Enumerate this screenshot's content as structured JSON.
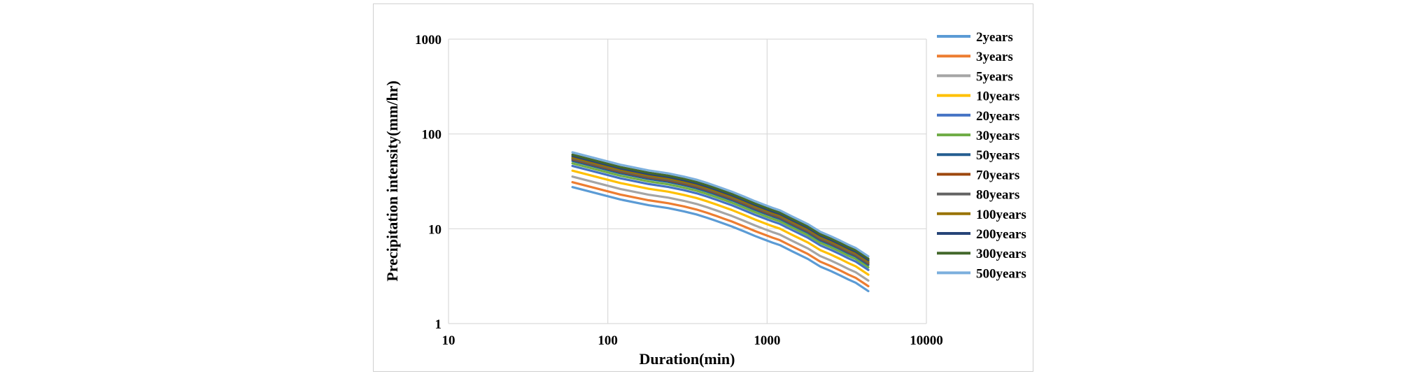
{
  "chart_data": {
    "type": "line",
    "xlabel": "Duration(min)",
    "ylabel": "Precipitation intensity(mm/hr)",
    "xscale": "log",
    "yscale": "log",
    "xlim": [
      10,
      10000
    ],
    "ylim": [
      1,
      1000
    ],
    "x_ticks": [
      "10",
      "100",
      "1000",
      "10000"
    ],
    "y_ticks": [
      "1",
      "10",
      "100",
      "1000"
    ],
    "grid": true,
    "legend_position": "right",
    "x": [
      60,
      120,
      180,
      240,
      300,
      360,
      420,
      480,
      540,
      600,
      720,
      840,
      960,
      1080,
      1200,
      1440,
      1800,
      2160,
      2520,
      2880,
      3240,
      3600,
      4320
    ],
    "series": [
      {
        "name": "2years",
        "color": "#5B9BD5",
        "base": 27.5
      },
      {
        "name": "3years",
        "color": "#ED7D31",
        "base": 31
      },
      {
        "name": "5years",
        "color": "#A5A5A5",
        "base": 35.5
      },
      {
        "name": "10years",
        "color": "#FFC000",
        "base": 41
      },
      {
        "name": "20years",
        "color": "#4472C4",
        "base": 46
      },
      {
        "name": "30years",
        "color": "#70AD47",
        "base": 49
      },
      {
        "name": "50years",
        "color": "#255E91",
        "base": 52
      },
      {
        "name": "70years",
        "color": "#9E480E",
        "base": 54
      },
      {
        "name": "80years",
        "color": "#636363",
        "base": 55
      },
      {
        "name": "100years",
        "color": "#997300",
        "base": 56.5
      },
      {
        "name": "200years",
        "color": "#264478",
        "base": 58.5
      },
      {
        "name": "300years",
        "color": "#43682B",
        "base": 60.5
      },
      {
        "name": "500years",
        "color": "#7CAFDD",
        "base": 64
      }
    ],
    "shape_factors": [
      1.0,
      0.74,
      0.645,
      0.6,
      0.555,
      0.515,
      0.475,
      0.44,
      0.41,
      0.385,
      0.34,
      0.305,
      0.28,
      0.26,
      0.245,
      0.21,
      0.175,
      0.145,
      0.13,
      0.117,
      0.106,
      0.098,
      0.08
    ]
  }
}
